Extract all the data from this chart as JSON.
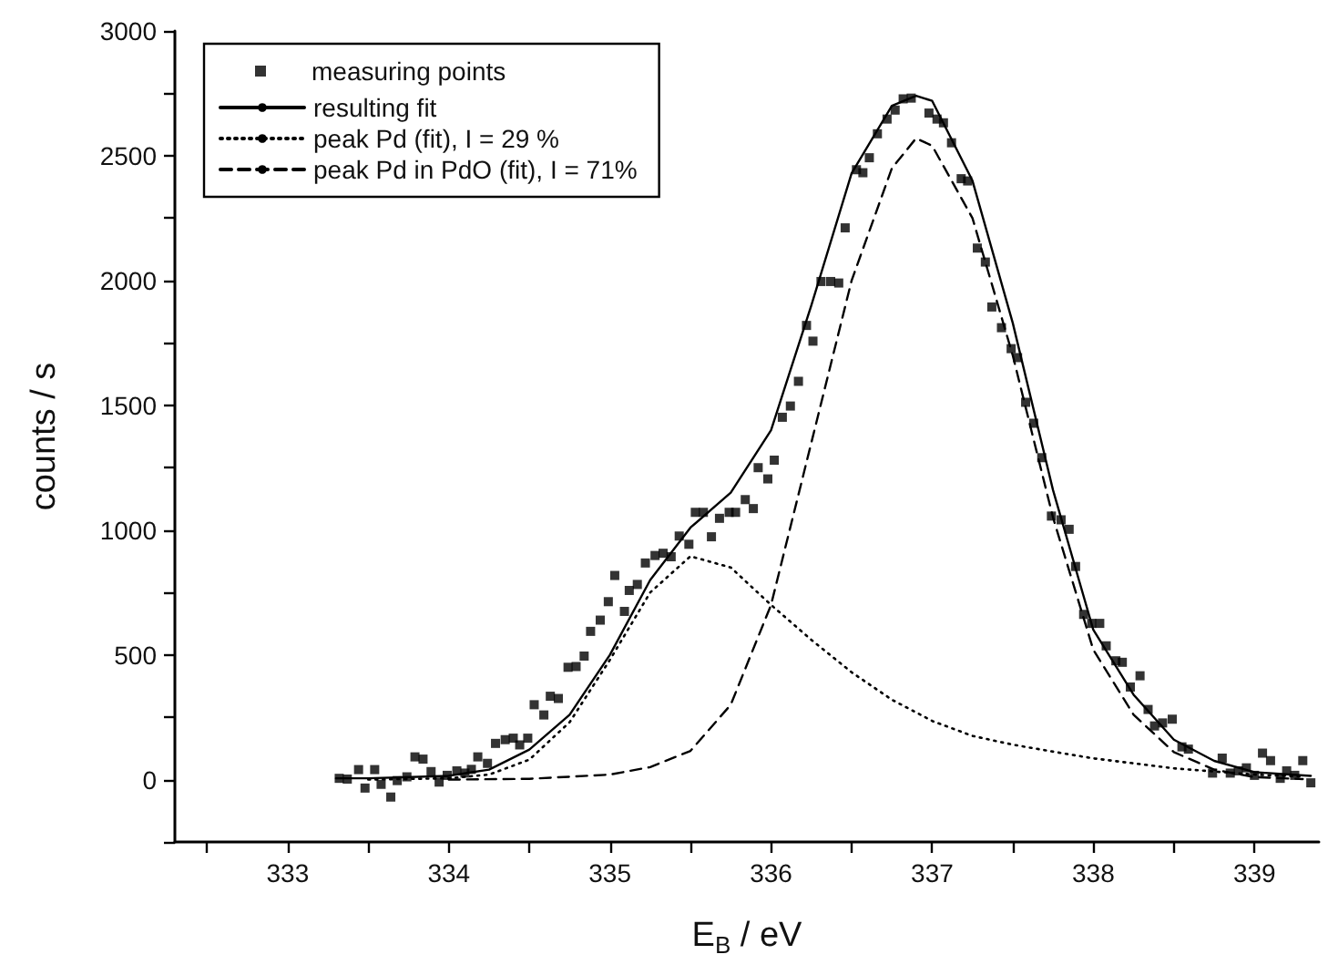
{
  "chart_data": {
    "type": "scatter",
    "xlabel": "E$_{B}$ / eV",
    "ylabel": "counts / s",
    "xlim": [
      332.3,
      339.4
    ],
    "ylim": [
      -250,
      3000
    ],
    "xticks": [
      {
        "value": 332.5,
        "label": null
      },
      333,
      {
        "value": 333.5,
        "label": null
      },
      334,
      {
        "value": 334.5,
        "label": null
      },
      335,
      {
        "value": 335.5,
        "label": null
      },
      336,
      {
        "value": 336.5,
        "label": null
      },
      337,
      {
        "value": 337.5,
        "label": null
      },
      338,
      {
        "value": 338.5,
        "label": null
      },
      339
    ],
    "yticks": [
      {
        "value": -250,
        "label": null
      },
      0,
      {
        "value": 250,
        "label": null
      },
      500,
      {
        "value": 750,
        "label": null
      },
      1000,
      {
        "value": 1250,
        "label": null
      },
      1500,
      {
        "value": 1750,
        "label": null
      },
      2000,
      {
        "value": 2250,
        "label": null
      },
      2500,
      {
        "value": 2750,
        "label": null
      },
      3000
    ],
    "grid": false,
    "legend": "top left",
    "series": [
      {
        "name": "measuring points",
        "marker": "square",
        "color": "#000000",
        "x": [
          333.32,
          333.37,
          333.44,
          333.48,
          333.54,
          333.58,
          333.64,
          333.68,
          333.74,
          333.79,
          333.84,
          333.89,
          333.94,
          333.99,
          334.05,
          334.1,
          334.14,
          334.18,
          334.24,
          334.29,
          334.35,
          334.4,
          334.44,
          334.49,
          334.53,
          334.59,
          334.63,
          334.68,
          334.74,
          334.79,
          334.84,
          334.88,
          334.94,
          334.99,
          335.03,
          335.09,
          335.12,
          335.17,
          335.22,
          335.28,
          335.33,
          335.38,
          335.43,
          335.49,
          335.53,
          335.58,
          335.63,
          335.68,
          335.74,
          335.78,
          335.84,
          335.89,
          335.92,
          335.98,
          336.02,
          336.07,
          336.12,
          336.17,
          336.22,
          336.26,
          336.31,
          336.37,
          336.42,
          336.46,
          336.53,
          336.57,
          336.61,
          336.66,
          336.72,
          336.77,
          336.82,
          336.87,
          336.98,
          337.03,
          337.07,
          337.12,
          337.18,
          337.22,
          337.28,
          337.33,
          337.37,
          337.43,
          337.49,
          337.53,
          337.58,
          337.63,
          337.68,
          337.74,
          337.8,
          337.85,
          337.89,
          337.94,
          337.99,
          338.04,
          338.08,
          338.14,
          338.18,
          338.23,
          338.29,
          338.34,
          338.38,
          338.43,
          338.49,
          338.55,
          338.59,
          338.74,
          338.8,
          338.85,
          338.9,
          338.95,
          339,
          339.05,
          339.1,
          339.16,
          339.2,
          339.25,
          339.3,
          339.35
        ],
        "values": [
          5,
          2,
          40,
          -34,
          40,
          -19,
          -70,
          -4,
          11,
          91,
          82,
          32,
          -10,
          17,
          35,
          26,
          41,
          91,
          65,
          145,
          160,
          166,
          139,
          166,
          300,
          259,
          334,
          325,
          450,
          453,
          495,
          594,
          639,
          713,
          818,
          674,
          758,
          782,
          868,
          898,
          907,
          893,
          976,
          943,
          1071,
          1071,
          973,
          1047,
          1071,
          1071,
          1122,
          1086,
          1250,
          1205,
          1280,
          1452,
          1497,
          1596,
          1820,
          1757,
          1996,
          1996,
          1990,
          2211,
          2444,
          2432,
          2492,
          2588,
          2647,
          2683,
          2728,
          2731,
          2671,
          2647,
          2632,
          2552,
          2408,
          2399,
          2130,
          2074,
          1894,
          1811,
          1727,
          1691,
          1512,
          1428,
          1290,
          1056,
          1041,
          1003,
          854,
          662,
          626,
          626,
          536,
          476,
          470,
          371,
          416,
          281,
          215,
          227,
          242,
          131,
          122,
          26,
          86,
          26,
          35,
          47,
          17,
          106,
          76,
          5,
          35,
          17,
          76,
          -13
        ]
      },
      {
        "name": "resulting fit",
        "type": "line",
        "line_style": "solid",
        "color": "#000000",
        "x": [
          333.3,
          333.5,
          334,
          334.25,
          334.5,
          334.75,
          335,
          335.25,
          335.5,
          335.75,
          336,
          336.25,
          336.5,
          336.75,
          336.9,
          337,
          337.25,
          337.5,
          337.75,
          338,
          338.25,
          338.5,
          338.75,
          339,
          339.35
        ],
        "values": [
          5,
          5,
          15,
          40,
          120,
          260,
          500,
          800,
          1010,
          1150,
          1400,
          1900,
          2430,
          2700,
          2740,
          2720,
          2400,
          1830,
          1160,
          600,
          340,
          160,
          75,
          30,
          15
        ]
      },
      {
        "name": "peak Pd (fit), I = 29 %",
        "type": "line",
        "line_style": "dotted",
        "color": "#000000",
        "x": [
          333.5,
          334,
          334.25,
          334.5,
          334.75,
          335,
          335.25,
          335.5,
          335.75,
          336,
          336.25,
          336.5,
          336.75,
          337,
          337.25,
          337.5,
          337.75,
          338,
          338.5,
          339,
          339.3
        ],
        "values": [
          0,
          5,
          20,
          80,
          230,
          480,
          750,
          895,
          850,
          700,
          560,
          430,
          320,
          235,
          175,
          140,
          112,
          85,
          45,
          20,
          12
        ]
      },
      {
        "name": "peak Pd in PdO (fit), I = 71%",
        "type": "line",
        "line_style": "dashed",
        "color": "#000000",
        "x": [
          334,
          334.5,
          335,
          335.25,
          335.5,
          335.75,
          336,
          336.25,
          336.5,
          336.75,
          336.9,
          337,
          337.25,
          337.5,
          337.75,
          338,
          338.25,
          338.5,
          338.75,
          339,
          339.3
        ],
        "values": [
          0,
          3,
          20,
          50,
          115,
          300,
          700,
          1350,
          2000,
          2450,
          2570,
          2540,
          2250,
          1700,
          1050,
          520,
          260,
          110,
          40,
          10,
          2
        ]
      }
    ]
  }
}
